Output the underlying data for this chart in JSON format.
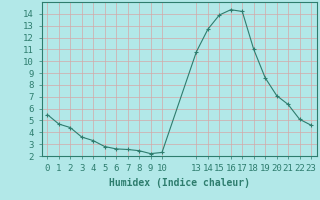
{
  "x": [
    0,
    1,
    2,
    3,
    4,
    5,
    6,
    7,
    8,
    9,
    10,
    13,
    14,
    15,
    16,
    17,
    18,
    19,
    20,
    21,
    22,
    23
  ],
  "y": [
    5.5,
    4.7,
    4.4,
    3.6,
    3.3,
    2.8,
    2.6,
    2.55,
    2.45,
    2.2,
    2.3,
    10.8,
    12.7,
    13.9,
    14.35,
    14.2,
    11.0,
    8.6,
    7.1,
    6.35,
    5.1,
    4.6
  ],
  "line_color": "#2e7d6e",
  "marker": "+",
  "marker_size": 3,
  "background_color": "#b2e8e8",
  "grid_color": "#d4a8a8",
  "xlabel": "Humidex (Indice chaleur)",
  "ylim": [
    2,
    15
  ],
  "xlim": [
    -0.5,
    23.5
  ],
  "yticks": [
    2,
    3,
    4,
    5,
    6,
    7,
    8,
    9,
    10,
    11,
    12,
    13,
    14
  ],
  "axis_color": "#2e7d6e",
  "font_size": 6.5,
  "xlabel_fontsize": 7,
  "linewidth": 0.8
}
